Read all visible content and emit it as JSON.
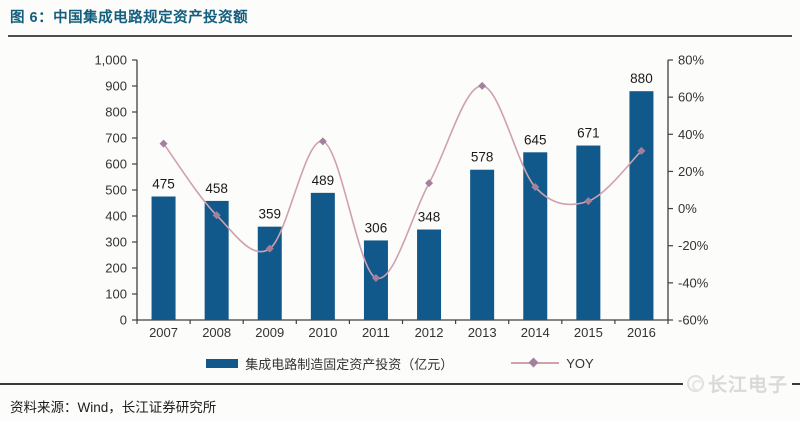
{
  "header": {
    "title": "图 6：中国集成电路规定资产投资额"
  },
  "chart_data": {
    "type": "bar",
    "title": "中国集成电路规定资产投资额",
    "categories": [
      "2007",
      "2008",
      "2009",
      "2010",
      "2011",
      "2012",
      "2013",
      "2014",
      "2015",
      "2016"
    ],
    "series": [
      {
        "name": "集成电路制造固定资产投资（亿元）",
        "type": "bar",
        "axis": "left",
        "color": "#11598a",
        "values": [
          475,
          458,
          359,
          489,
          306,
          348,
          578,
          645,
          671,
          880
        ]
      },
      {
        "name": "YOY",
        "type": "line",
        "axis": "right",
        "color": "#d0a0ae",
        "marker_color": "#a2809e",
        "values": [
          35.0,
          -3.6,
          -21.6,
          36.2,
          -37.4,
          13.7,
          66.1,
          11.6,
          4.0,
          31.1
        ]
      }
    ],
    "bar_labels": [
      "475",
      "458",
      "359",
      "489",
      "306",
      "348",
      "578",
      "645",
      "671",
      "880"
    ],
    "left_axis": {
      "min": 0,
      "max": 1000,
      "step": 100,
      "tick_labels": [
        "0",
        "100",
        "200",
        "300",
        "400",
        "500",
        "600",
        "700",
        "800",
        "900",
        "1,000"
      ]
    },
    "right_axis": {
      "min": -60,
      "max": 80,
      "step": 20,
      "tick_labels": [
        "-60%",
        "-40%",
        "-20%",
        "0%",
        "20%",
        "40%",
        "60%",
        "80%"
      ]
    },
    "grid": false,
    "legend_position": "bottom",
    "axis_color": "#404040",
    "text_color": "#333333",
    "label_color": "#1a1a1a"
  },
  "footer": {
    "source": "资料来源：Wind，长江证券研究所",
    "watermark": "长江电子"
  }
}
